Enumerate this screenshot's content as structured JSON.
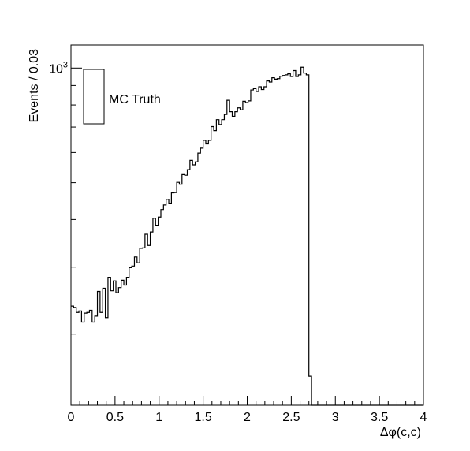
{
  "chart_data": {
    "type": "histogram",
    "ylabel": "Events / 0.03",
    "xlabel": "Δφ(c,c)",
    "xlim": [
      0,
      4
    ],
    "ylog": true,
    "ylim": [
      130,
      1150
    ],
    "grid": false,
    "xticks": [
      0,
      0.5,
      1,
      1.5,
      2,
      2.5,
      3,
      3.5,
      4
    ],
    "xtick_labels": [
      "0",
      "0.5",
      "1",
      "1.5",
      "2",
      "2.5",
      "3",
      "3.5",
      "4"
    ],
    "yticks_major": [
      1000
    ],
    "ytick_base": "10",
    "ytick_exp": "3",
    "ytick_minor": [
      200,
      300,
      400,
      500,
      600,
      700,
      800,
      900
    ],
    "bin_width": 0.03,
    "series": [
      {
        "name": "MC Truth",
        "values": [
          237,
          235,
          228,
          230,
          215,
          227,
          228,
          231,
          215,
          223,
          259,
          228,
          264,
          221,
          282,
          260,
          276,
          257,
          265,
          277,
          269,
          282,
          299,
          302,
          319,
          308,
          336,
          337,
          366,
          342,
          371,
          403,
          385,
          406,
          425,
          437,
          452,
          440,
          470,
          471,
          501,
          495,
          525,
          523,
          541,
          572,
          557,
          567,
          598,
          616,
          646,
          632,
          646,
          702,
          685,
          732,
          711,
          732,
          755,
          823,
          768,
          747,
          768,
          786,
          777,
          818,
          812,
          820,
          876,
          883,
          868,
          893,
          878,
          893,
          925,
          919,
          943,
          935,
          938,
          952,
          956,
          960,
          966,
          950,
          985,
          950,
          960,
          1005,
          970,
          960,
          155,
          0,
          0,
          0,
          0,
          0,
          0,
          0,
          0,
          0,
          0,
          0,
          0,
          0,
          0,
          0,
          0,
          0,
          0,
          0,
          0,
          0,
          0,
          0,
          0,
          0,
          0,
          0,
          0,
          0,
          0,
          0,
          0,
          0,
          0,
          0,
          0,
          0,
          0,
          0,
          0,
          0,
          0
        ]
      }
    ],
    "legend": {
      "entries": [
        "MC Truth"
      ],
      "placement": "top-left"
    }
  }
}
